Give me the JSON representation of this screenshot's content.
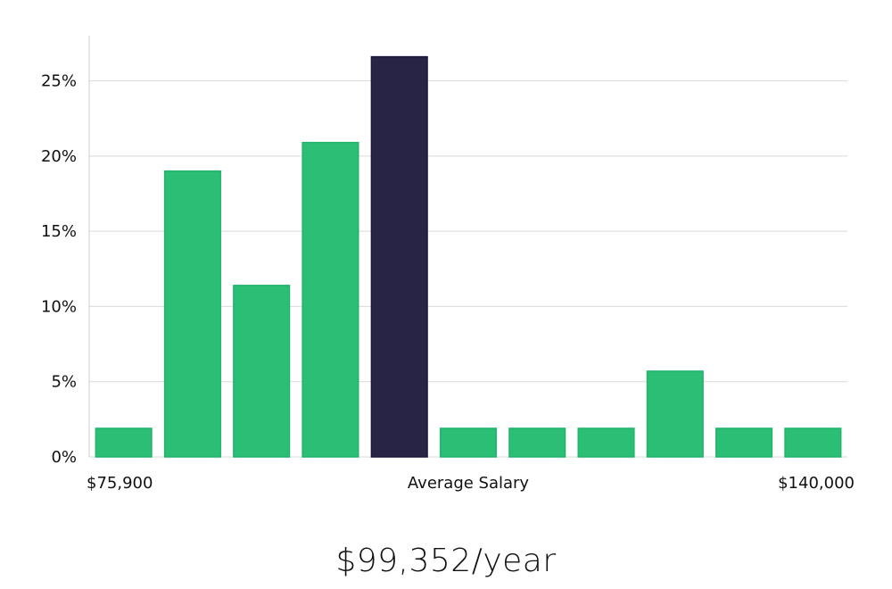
{
  "chart_data": {
    "type": "bar",
    "categories": [
      "1",
      "2",
      "3",
      "4",
      "5",
      "6",
      "7",
      "8",
      "9",
      "10",
      "11"
    ],
    "values": [
      1.9,
      19.0,
      11.4,
      20.9,
      26.6,
      1.9,
      1.9,
      1.9,
      5.7,
      1.9,
      1.9
    ],
    "highlight_index": 4,
    "ylim": [
      0,
      28
    ],
    "yticks": [
      0,
      5,
      10,
      15,
      20,
      25
    ],
    "ytick_suffix": "%",
    "x_labels": {
      "left": "$75,900",
      "center": "Average Salary",
      "right": "$140,000"
    },
    "grid": true,
    "colors": {
      "bar": "#2bbf76",
      "highlight": "#282446",
      "grid": "#d9d9d9",
      "axis": "#cccccc"
    }
  },
  "summary": {
    "salary": "$99,352/year"
  }
}
